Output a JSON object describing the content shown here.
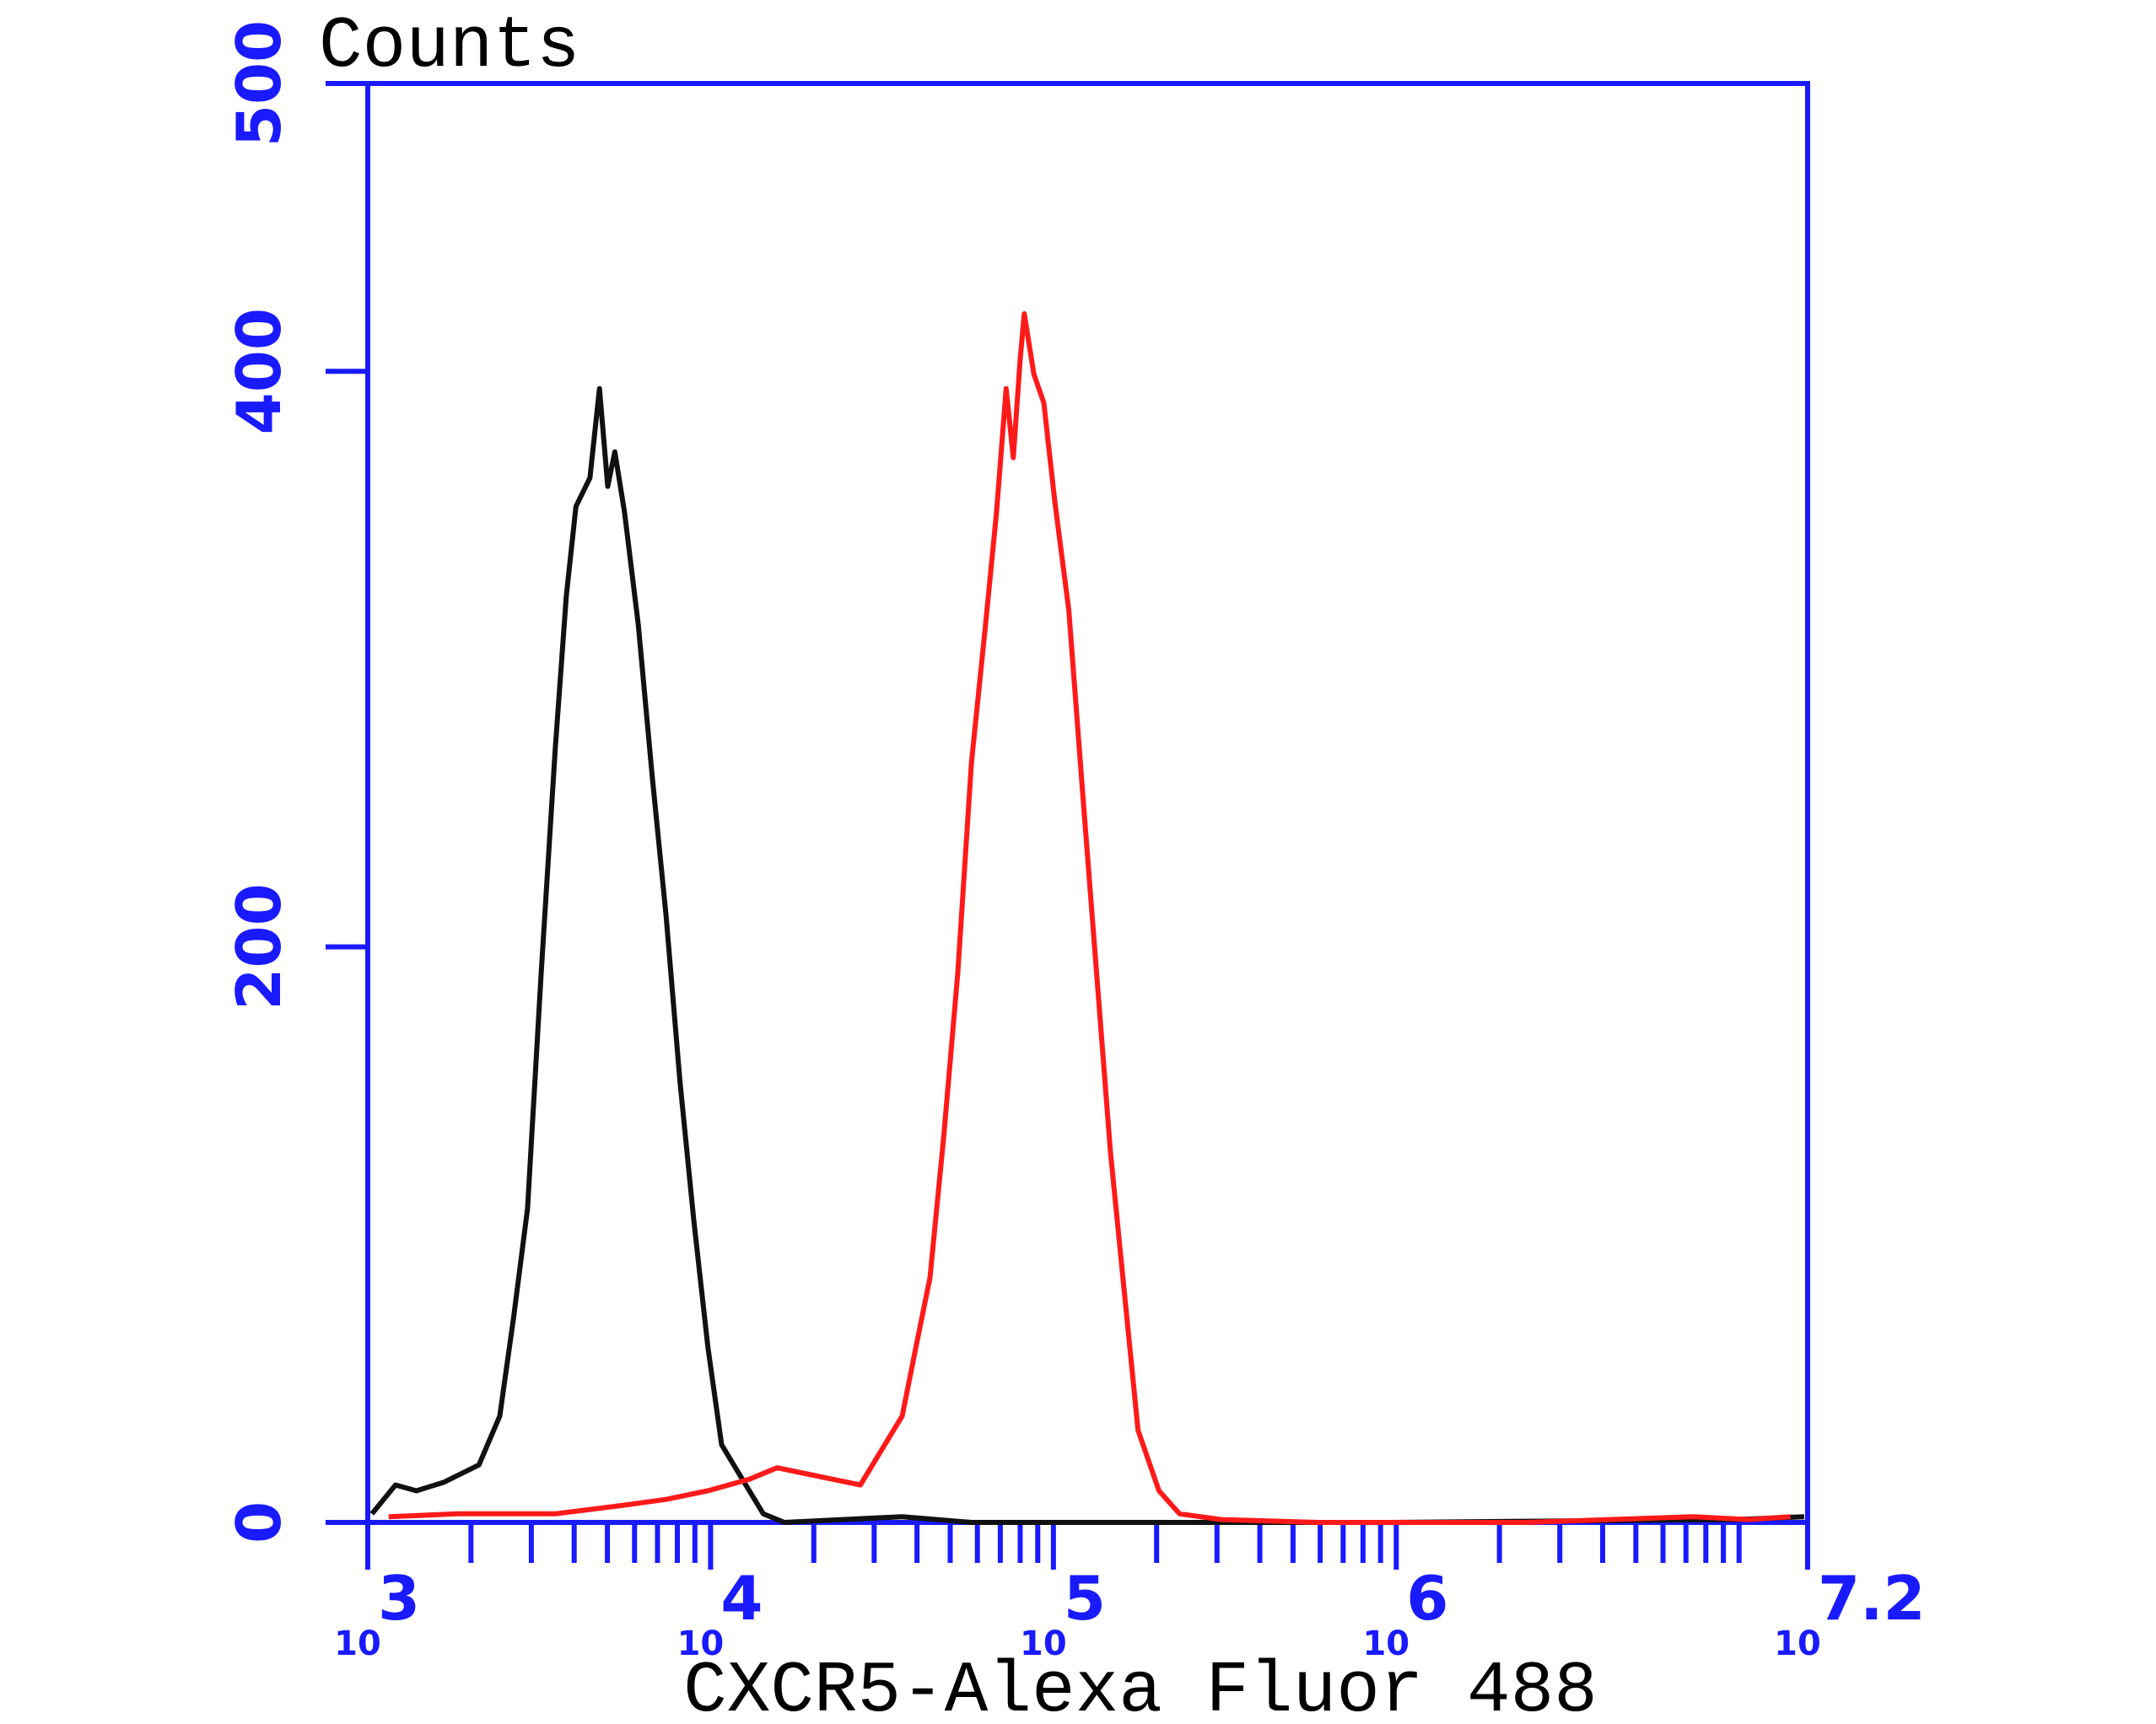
{
  "chart_data": {
    "type": "histogram-line",
    "y_label": "Counts",
    "x_label": "CXCR5-Alexa Fluor 488",
    "xscale": "log",
    "xlim": [
      1000,
      15848932
    ],
    "xticks": [
      {
        "value": 1000,
        "label": "10",
        "exponent": "3"
      },
      {
        "value": 10000,
        "label": "10",
        "exponent": "4"
      },
      {
        "value": 100000,
        "label": "10",
        "exponent": "5"
      },
      {
        "value": 1000000,
        "label": "10",
        "exponent": "6"
      },
      {
        "value": 15848932,
        "label": "10",
        "exponent": "7.2"
      }
    ],
    "xticks_minor": [
      2000,
      3000,
      4000,
      5000,
      6000,
      7000,
      8000,
      9000,
      20000,
      30000,
      40000,
      50000,
      60000,
      70000,
      80000,
      90000,
      200000,
      300000,
      400000,
      500000,
      600000,
      700000,
      800000,
      900000,
      2000000,
      3000000,
      4000000,
      5000000,
      6000000,
      7000000,
      8000000,
      9000000,
      10000000
    ],
    "ylim": [
      0,
      500
    ],
    "yticks": [
      0,
      200,
      400,
      500
    ],
    "axis_color": "#1a1aff",
    "series": [
      {
        "color": "#111111",
        "x": [
          1028,
          1205,
          1387,
          1671,
          2110,
          2427,
          2662,
          2924,
          3206,
          3524,
          3794,
          4047,
          4446,
          4742,
          5012,
          5255,
          5610,
          6152,
          6761,
          7413,
          8144,
          8933,
          9817,
          10770,
          12380,
          14250,
          16410,
          36220,
          57680,
          946200,
          9727000,
          15490000
        ],
        "values": [
          3,
          13,
          11,
          14,
          20,
          37,
          71,
          109,
          191,
          269,
          322,
          353,
          363,
          394,
          360,
          372,
          351,
          312,
          259,
          211,
          153,
          105,
          61,
          27,
          15,
          3,
          0,
          2,
          0,
          0,
          1,
          2
        ]
      },
      {
        "color": "#ff1a1a",
        "x": [
          1151,
          1832,
          3524,
          5610,
          7413,
          9817,
          12970,
          15630,
          18840,
          22700,
          27350,
          31470,
          36220,
          39720,
          43650,
          47860,
          52600,
          57680,
          63390,
          68230,
          72780,
          76380,
          79980,
          82220,
          87700,
          93760,
          100900,
          110900,
          121600,
          133600,
          146600,
          160700,
          176600,
          203200,
          233300,
          309000,
          593000,
          2404000,
          7345000,
          10670000,
          14130000
        ],
        "values": [
          2,
          3,
          3,
          6,
          8,
          11,
          15,
          19,
          17,
          15,
          13,
          25,
          37,
          61,
          85,
          134,
          191,
          264,
          312,
          351,
          394,
          370,
          404,
          420,
          399,
          389,
          355,
          317,
          254,
          191,
          129,
          81,
          32,
          11,
          3,
          1,
          0,
          0,
          2,
          1,
          2
        ]
      }
    ]
  }
}
